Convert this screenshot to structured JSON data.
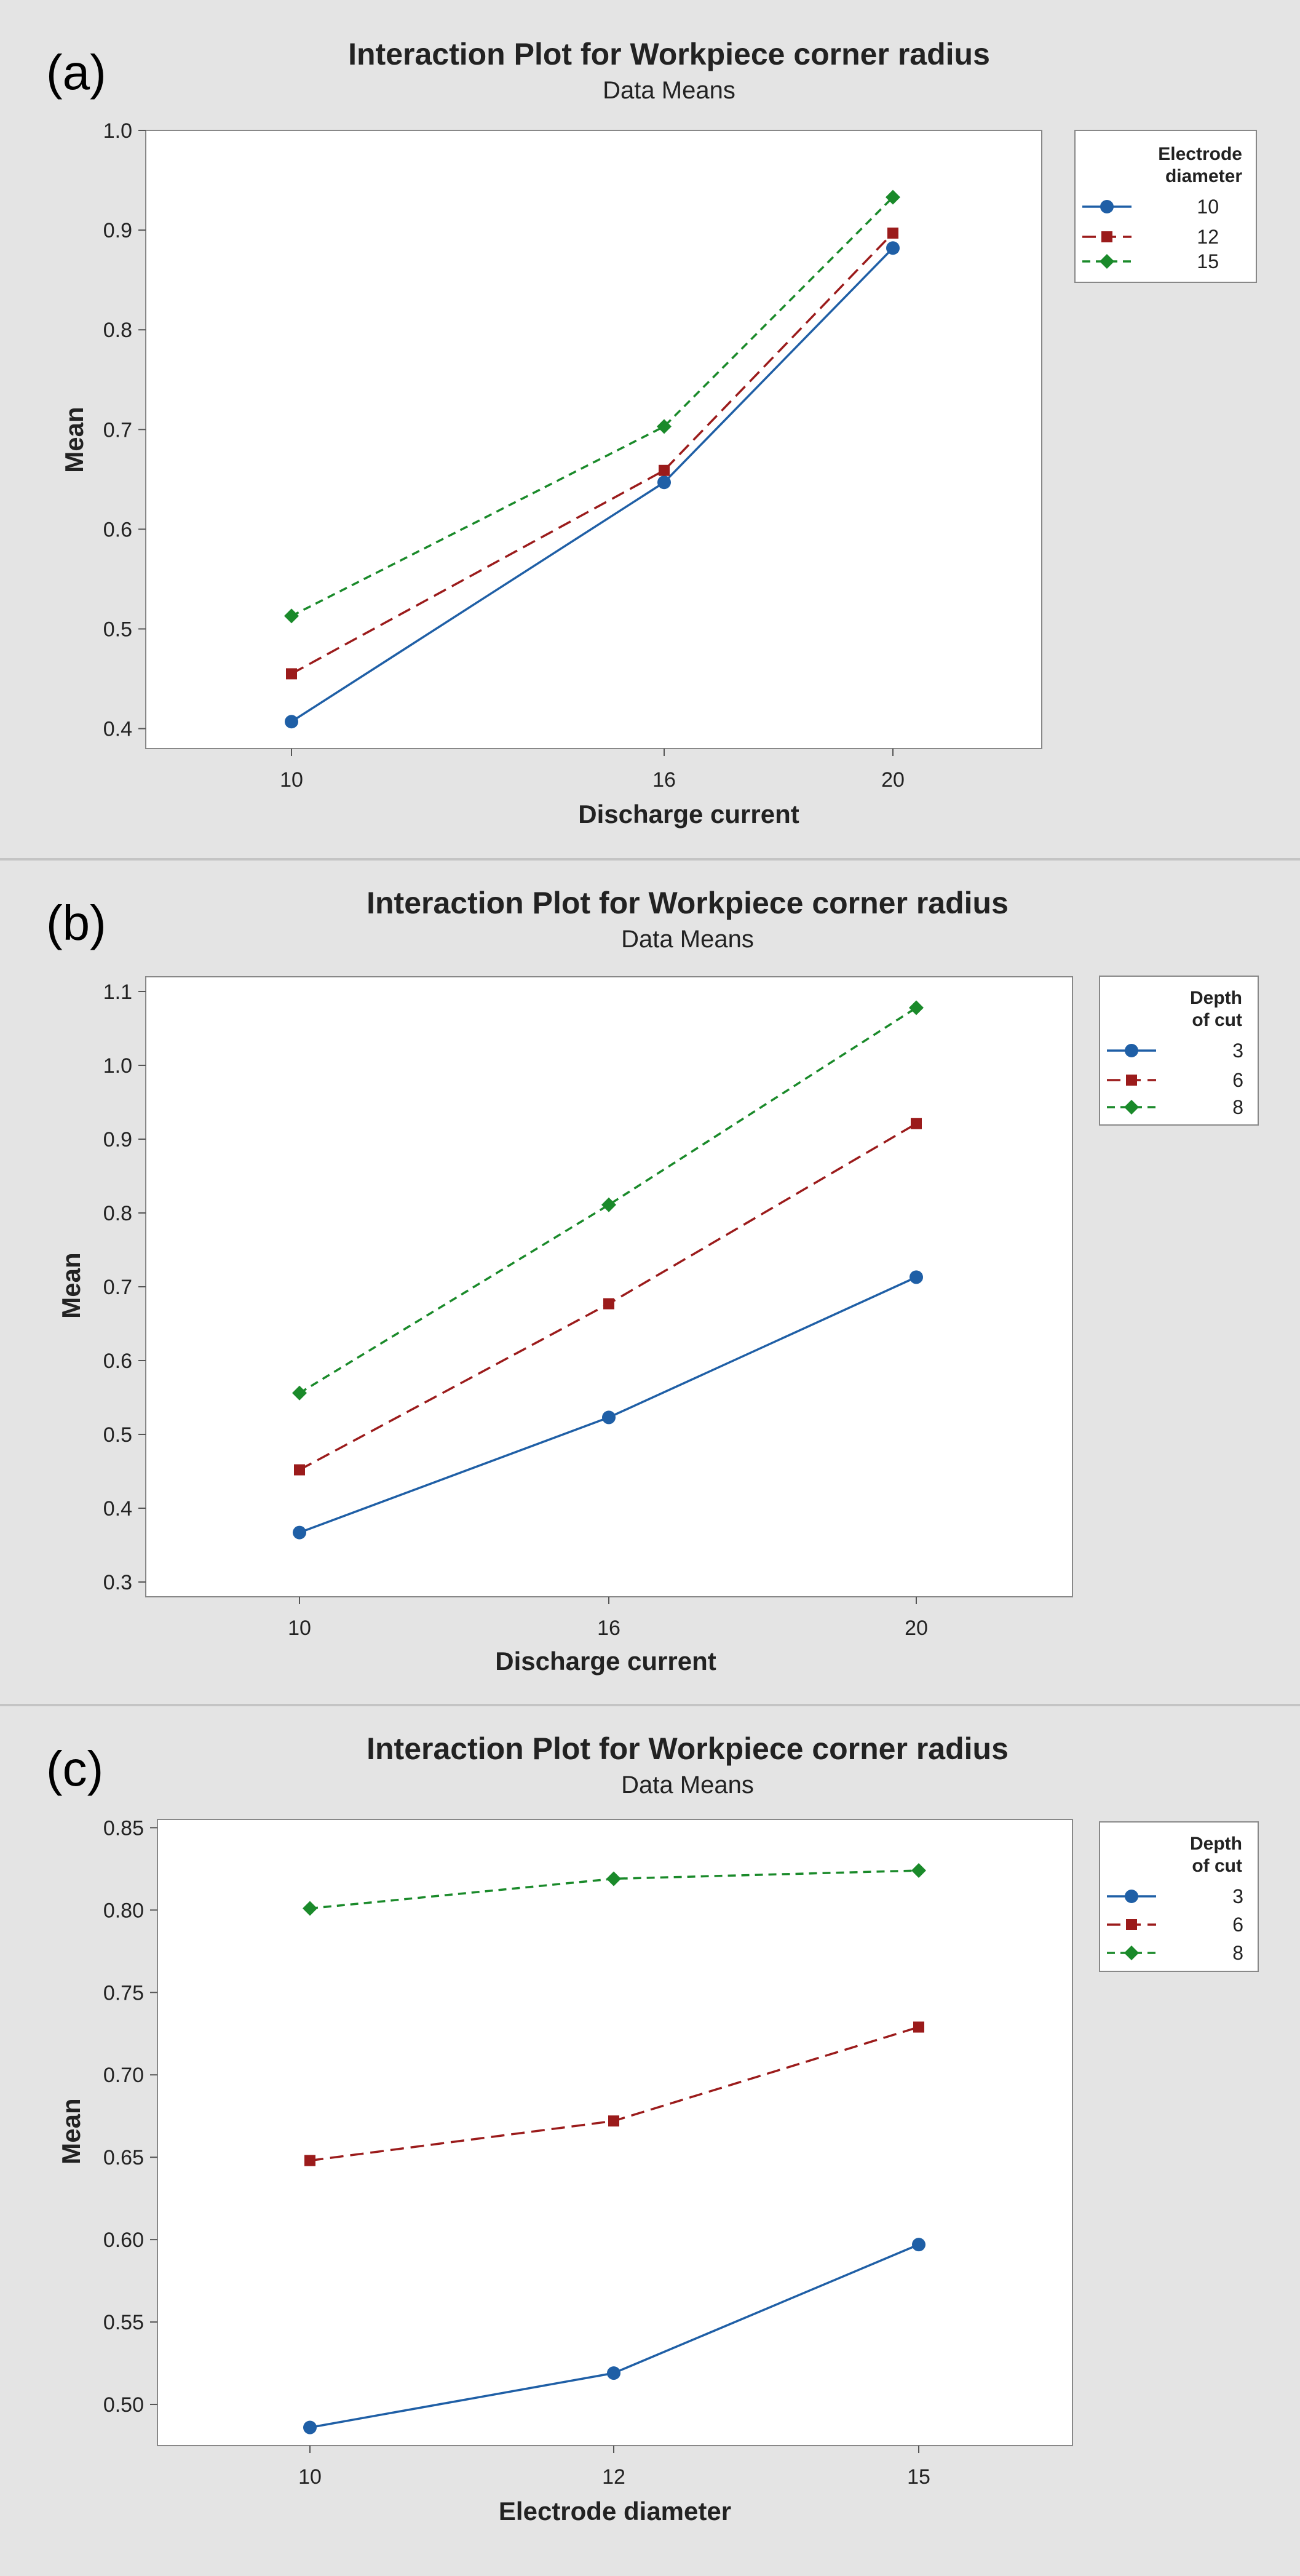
{
  "chart_data": [
    {
      "type": "line",
      "panel_label": "(a)",
      "title": "Interaction Plot for Workpiece corner radius",
      "subtitle": "Data Means",
      "xlabel": "Discharge current",
      "ylabel": "Mean",
      "categories": [
        "10",
        "16",
        "20"
      ],
      "ylim": [
        0.38,
        1.0
      ],
      "yticks": [
        "0.4",
        "0.5",
        "0.6",
        "0.7",
        "0.8",
        "0.9",
        "1.0"
      ],
      "legend_title": [
        "Electrode",
        "diameter"
      ],
      "legend_position": "top-right",
      "series": [
        {
          "name": "10",
          "values": [
            0.407,
            0.647,
            0.882
          ],
          "color": "#1f5fa6",
          "marker": "circle",
          "dash": "solid"
        },
        {
          "name": "12",
          "values": [
            0.455,
            0.659,
            0.897
          ],
          "color": "#9b1b1b",
          "marker": "square",
          "dash": "dashed"
        },
        {
          "name": "15",
          "values": [
            0.513,
            0.703,
            0.933
          ],
          "color": "#1a8a2a",
          "marker": "diamond",
          "dash": "dotted"
        }
      ]
    },
    {
      "type": "line",
      "panel_label": "(b)",
      "title": "Interaction Plot for Workpiece corner radius",
      "subtitle": "Data Means",
      "xlabel": "Discharge current",
      "ylabel": "Mean",
      "categories": [
        "10",
        "16",
        "20"
      ],
      "ylim": [
        0.28,
        1.12
      ],
      "yticks": [
        "0.3",
        "0.4",
        "0.5",
        "0.6",
        "0.7",
        "0.8",
        "0.9",
        "1.0",
        "1.1"
      ],
      "legend_title": [
        "Depth",
        "of cut"
      ],
      "legend_position": "top-right",
      "series": [
        {
          "name": "3",
          "values": [
            0.367,
            0.523,
            0.713
          ],
          "color": "#1f5fa6",
          "marker": "circle",
          "dash": "solid"
        },
        {
          "name": "6",
          "values": [
            0.452,
            0.677,
            0.921
          ],
          "color": "#9b1b1b",
          "marker": "square",
          "dash": "dashed"
        },
        {
          "name": "8",
          "values": [
            0.556,
            0.811,
            1.078
          ],
          "color": "#1a8a2a",
          "marker": "diamond",
          "dash": "dotted"
        }
      ]
    },
    {
      "type": "line",
      "panel_label": "(c)",
      "title": "Interaction Plot for Workpiece corner radius",
      "subtitle": "Data Means",
      "xlabel": "Electrode diameter",
      "ylabel": "Mean",
      "categories": [
        "10",
        "12",
        "15"
      ],
      "ylim": [
        0.475,
        0.855
      ],
      "yticks": [
        "0.50",
        "0.55",
        "0.60",
        "0.65",
        "0.70",
        "0.75",
        "0.80",
        "0.85"
      ],
      "legend_title": [
        "Depth",
        "of cut"
      ],
      "legend_position": "top-right",
      "series": [
        {
          "name": "3",
          "values": [
            0.486,
            0.519,
            0.597
          ],
          "color": "#1f5fa6",
          "marker": "circle",
          "dash": "solid"
        },
        {
          "name": "6",
          "values": [
            0.648,
            0.672,
            0.729
          ],
          "color": "#9b1b1b",
          "marker": "square",
          "dash": "dashed"
        },
        {
          "name": "8",
          "values": [
            0.801,
            0.819,
            0.824
          ],
          "color": "#1a8a2a",
          "marker": "diamond",
          "dash": "dotted"
        }
      ]
    }
  ]
}
